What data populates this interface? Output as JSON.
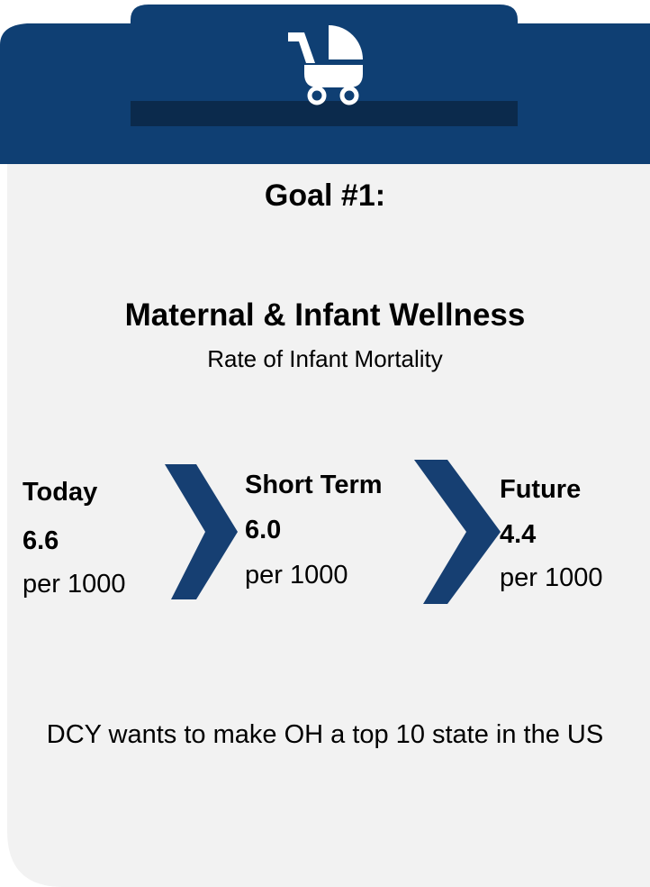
{
  "header": {
    "goal": "Goal #1:",
    "title": "Maternal & Infant Wellness",
    "subtitle": "Rate of Infant Mortality"
  },
  "stages": [
    {
      "label": "Today",
      "value": "6.6",
      "unit": "per 1000"
    },
    {
      "label": "Short Term",
      "value": "6.0",
      "unit": "per 1000"
    },
    {
      "label": "Future",
      "value": "4.4",
      "unit": "per 1000"
    }
  ],
  "footer": "DCY wants to make OH a top 10 state in the US"
}
